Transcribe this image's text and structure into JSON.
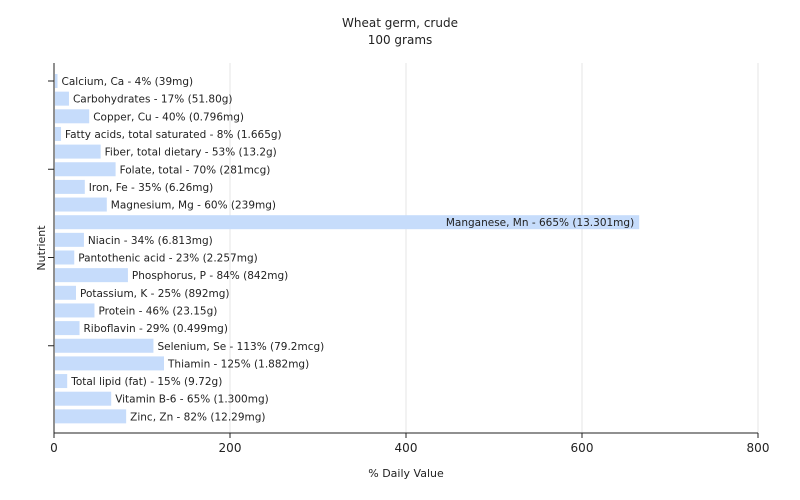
{
  "chart_data": {
    "type": "bar",
    "orientation": "horizontal",
    "title": "Wheat germ, crude",
    "subtitle": "100 grams",
    "xlabel": "% Daily Value",
    "ylabel": "Nutrient",
    "xlim": [
      0,
      800
    ],
    "x_ticks": [
      0,
      200,
      400,
      600,
      800
    ],
    "grid": true,
    "bar_color": "#c6dcfb",
    "categories": [
      "Calcium, Ca",
      "Carbohydrates",
      "Copper, Cu",
      "Fatty acids, total saturated",
      "Fiber, total dietary",
      "Folate, total",
      "Iron, Fe",
      "Magnesium, Mg",
      "Manganese, Mn",
      "Niacin",
      "Pantothenic acid",
      "Phosphorus, P",
      "Potassium, K",
      "Protein",
      "Riboflavin",
      "Selenium, Se",
      "Thiamin",
      "Total lipid (fat)",
      "Vitamin B-6",
      "Zinc, Zn"
    ],
    "values": [
      4,
      17,
      40,
      8,
      53,
      70,
      35,
      60,
      665,
      34,
      23,
      84,
      25,
      46,
      29,
      113,
      125,
      15,
      65,
      82
    ],
    "labels": [
      "Calcium, Ca - 4% (39mg)",
      "Carbohydrates - 17% (51.80g)",
      "Copper, Cu - 40% (0.796mg)",
      "Fatty acids, total saturated - 8% (1.665g)",
      "Fiber, total dietary - 53% (13.2g)",
      "Folate, total - 70% (281mcg)",
      "Iron, Fe - 35% (6.26mg)",
      "Magnesium, Mg - 60% (239mg)",
      "Manganese, Mn - 665% (13.301mg)",
      "Niacin - 34% (6.813mg)",
      "Pantothenic acid - 23% (2.257mg)",
      "Phosphorus, P - 84% (842mg)",
      "Potassium, K - 25% (892mg)",
      "Protein - 46% (23.15g)",
      "Riboflavin - 29% (0.499mg)",
      "Selenium, Se - 113% (79.2mcg)",
      "Thiamin - 125% (1.882mg)",
      "Total lipid (fat) - 15% (9.72g)",
      "Vitamin B-6 - 65% (1.300mg)",
      "Zinc, Zn - 82% (12.29mg)"
    ]
  }
}
